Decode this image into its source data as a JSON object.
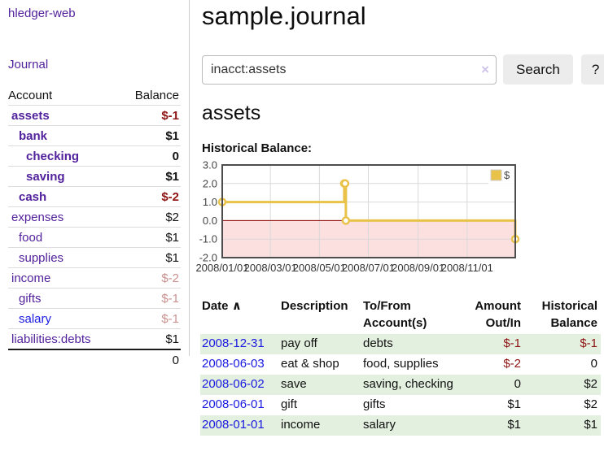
{
  "brand": "hledger-web",
  "nav": {
    "journal_label": "Journal"
  },
  "page_title": "sample.journal",
  "search": {
    "value": "inacct:assets",
    "clear_icon": "×",
    "button_label": "Search",
    "help_label": "?"
  },
  "account_heading": "assets",
  "chart_heading": "Historical Balance:",
  "sidebar": {
    "col_account": "Account",
    "col_balance": "Balance",
    "accounts": [
      {
        "name": "assets",
        "depth": 1,
        "bold": true,
        "balance": "$-1",
        "neg": "strong",
        "link": "purple"
      },
      {
        "name": "bank",
        "depth": 2,
        "bold": true,
        "balance": "$1",
        "neg": "none",
        "link": "purple"
      },
      {
        "name": "checking",
        "depth": 3,
        "bold": true,
        "balance": "0",
        "neg": "none",
        "link": "purple"
      },
      {
        "name": "saving",
        "depth": 3,
        "bold": true,
        "balance": "$1",
        "neg": "none",
        "link": "purple"
      },
      {
        "name": "cash",
        "depth": 2,
        "bold": true,
        "balance": "$-2",
        "neg": "strong",
        "link": "purple"
      },
      {
        "name": "expenses",
        "depth": 1,
        "bold": false,
        "balance": "$2",
        "neg": "none",
        "link": "purple"
      },
      {
        "name": "food",
        "depth": 2,
        "bold": false,
        "balance": "$1",
        "neg": "none",
        "link": "purple"
      },
      {
        "name": "supplies",
        "depth": 2,
        "bold": false,
        "balance": "$1",
        "neg": "none",
        "link": "purple"
      },
      {
        "name": "income",
        "depth": 1,
        "bold": false,
        "balance": "$-2",
        "neg": "faded",
        "link": "purple"
      },
      {
        "name": "gifts",
        "depth": 2,
        "bold": false,
        "balance": "$-1",
        "neg": "faded",
        "link": "purple"
      },
      {
        "name": "salary",
        "depth": 2,
        "bold": false,
        "balance": "$-1",
        "neg": "faded",
        "link": "blue"
      },
      {
        "name": "liabilities:debts",
        "depth": 1,
        "bold": false,
        "balance": "$1",
        "neg": "none",
        "link": "purple"
      }
    ],
    "total": "0"
  },
  "chart_data": {
    "type": "line",
    "step": true,
    "title": "Historical Balance",
    "series": [
      {
        "name": "$",
        "color": "#e9c24a",
        "points": [
          {
            "date": "2008-01-01",
            "value": 1
          },
          {
            "date": "2008-06-01",
            "value": 2
          },
          {
            "date": "2008-06-02",
            "value": 2
          },
          {
            "date": "2008-06-03",
            "value": 0
          },
          {
            "date": "2008-12-31",
            "value": -1
          }
        ]
      }
    ],
    "xlim": [
      "2008-01-01",
      "2008-12-31"
    ],
    "ylim": [
      -2,
      3
    ],
    "xticks": [
      "2008/01/01",
      "2008/03/01",
      "2008/05/01",
      "2008/07/01",
      "2008/09/01",
      "2008/11/01"
    ],
    "yticks": [
      3,
      2,
      1,
      0,
      -1,
      -2
    ],
    "grid": true,
    "legend_position": "top-right",
    "legend_label": "$",
    "negative_region_color": "#fcdfdf",
    "zero_line_color": "#8b0000"
  },
  "register": {
    "headers": {
      "date": "Date",
      "sort_icon": "∧",
      "description": "Description",
      "accounts": [
        "To/From",
        "Account(s)"
      ],
      "amount": [
        "Amount",
        "Out/In"
      ],
      "balance": [
        "Historical",
        "Balance"
      ]
    },
    "rows": [
      {
        "date": "2008-12-31",
        "description": "pay off",
        "accounts": "debts",
        "amount": "$-1",
        "amount_negative": true,
        "balance": "$-1",
        "balance_negative": true
      },
      {
        "date": "2008-06-03",
        "description": "eat & shop",
        "accounts": "food, supplies",
        "amount": "$-2",
        "amount_negative": true,
        "balance": "0",
        "balance_negative": false
      },
      {
        "date": "2008-06-02",
        "description": "save",
        "accounts": "saving, checking",
        "amount": "0",
        "amount_negative": false,
        "balance": "$2",
        "balance_negative": false
      },
      {
        "date": "2008-06-01",
        "description": "gift",
        "accounts": "gifts",
        "amount": "$1",
        "amount_negative": false,
        "balance": "$2",
        "balance_negative": false
      },
      {
        "date": "2008-01-01",
        "description": "income",
        "accounts": "salary",
        "amount": "$1",
        "amount_negative": false,
        "balance": "$1",
        "balance_negative": false
      }
    ]
  },
  "colors": {
    "link_purple": "#52219c",
    "link_blue": "#1a1ae0",
    "negative_strong": "#8e1313",
    "negative_faded": "#c9908f",
    "stripe_green": "#e3efdf",
    "series_gold": "#e9c24a",
    "grid_gray": "#d9d9d9",
    "chart_border": "#4d4d4d"
  }
}
